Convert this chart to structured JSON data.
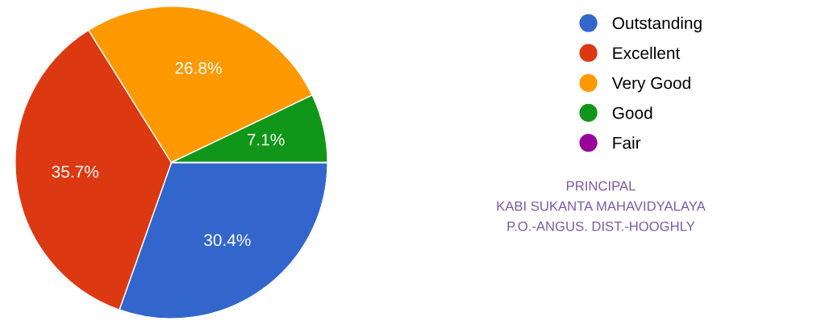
{
  "chart_data": {
    "type": "pie",
    "categories": [
      "Outstanding",
      "Excellent",
      "Very Good",
      "Good",
      "Fair"
    ],
    "values": [
      30.4,
      35.7,
      26.8,
      7.1,
      0
    ],
    "value_labels": [
      "30.4%",
      "35.7%",
      "26.8%",
      "7.1%",
      null
    ],
    "colors": [
      "#3366cc",
      "#dc3912",
      "#ff9900",
      "#109618",
      "#990099"
    ],
    "legend": "right",
    "annotations": [
      "PRINCIPAL",
      "KABI SUKANTA MAHAVIDYALAYA",
      "P.O.-ANGUS. DIST.-HOOGHLY"
    ]
  }
}
